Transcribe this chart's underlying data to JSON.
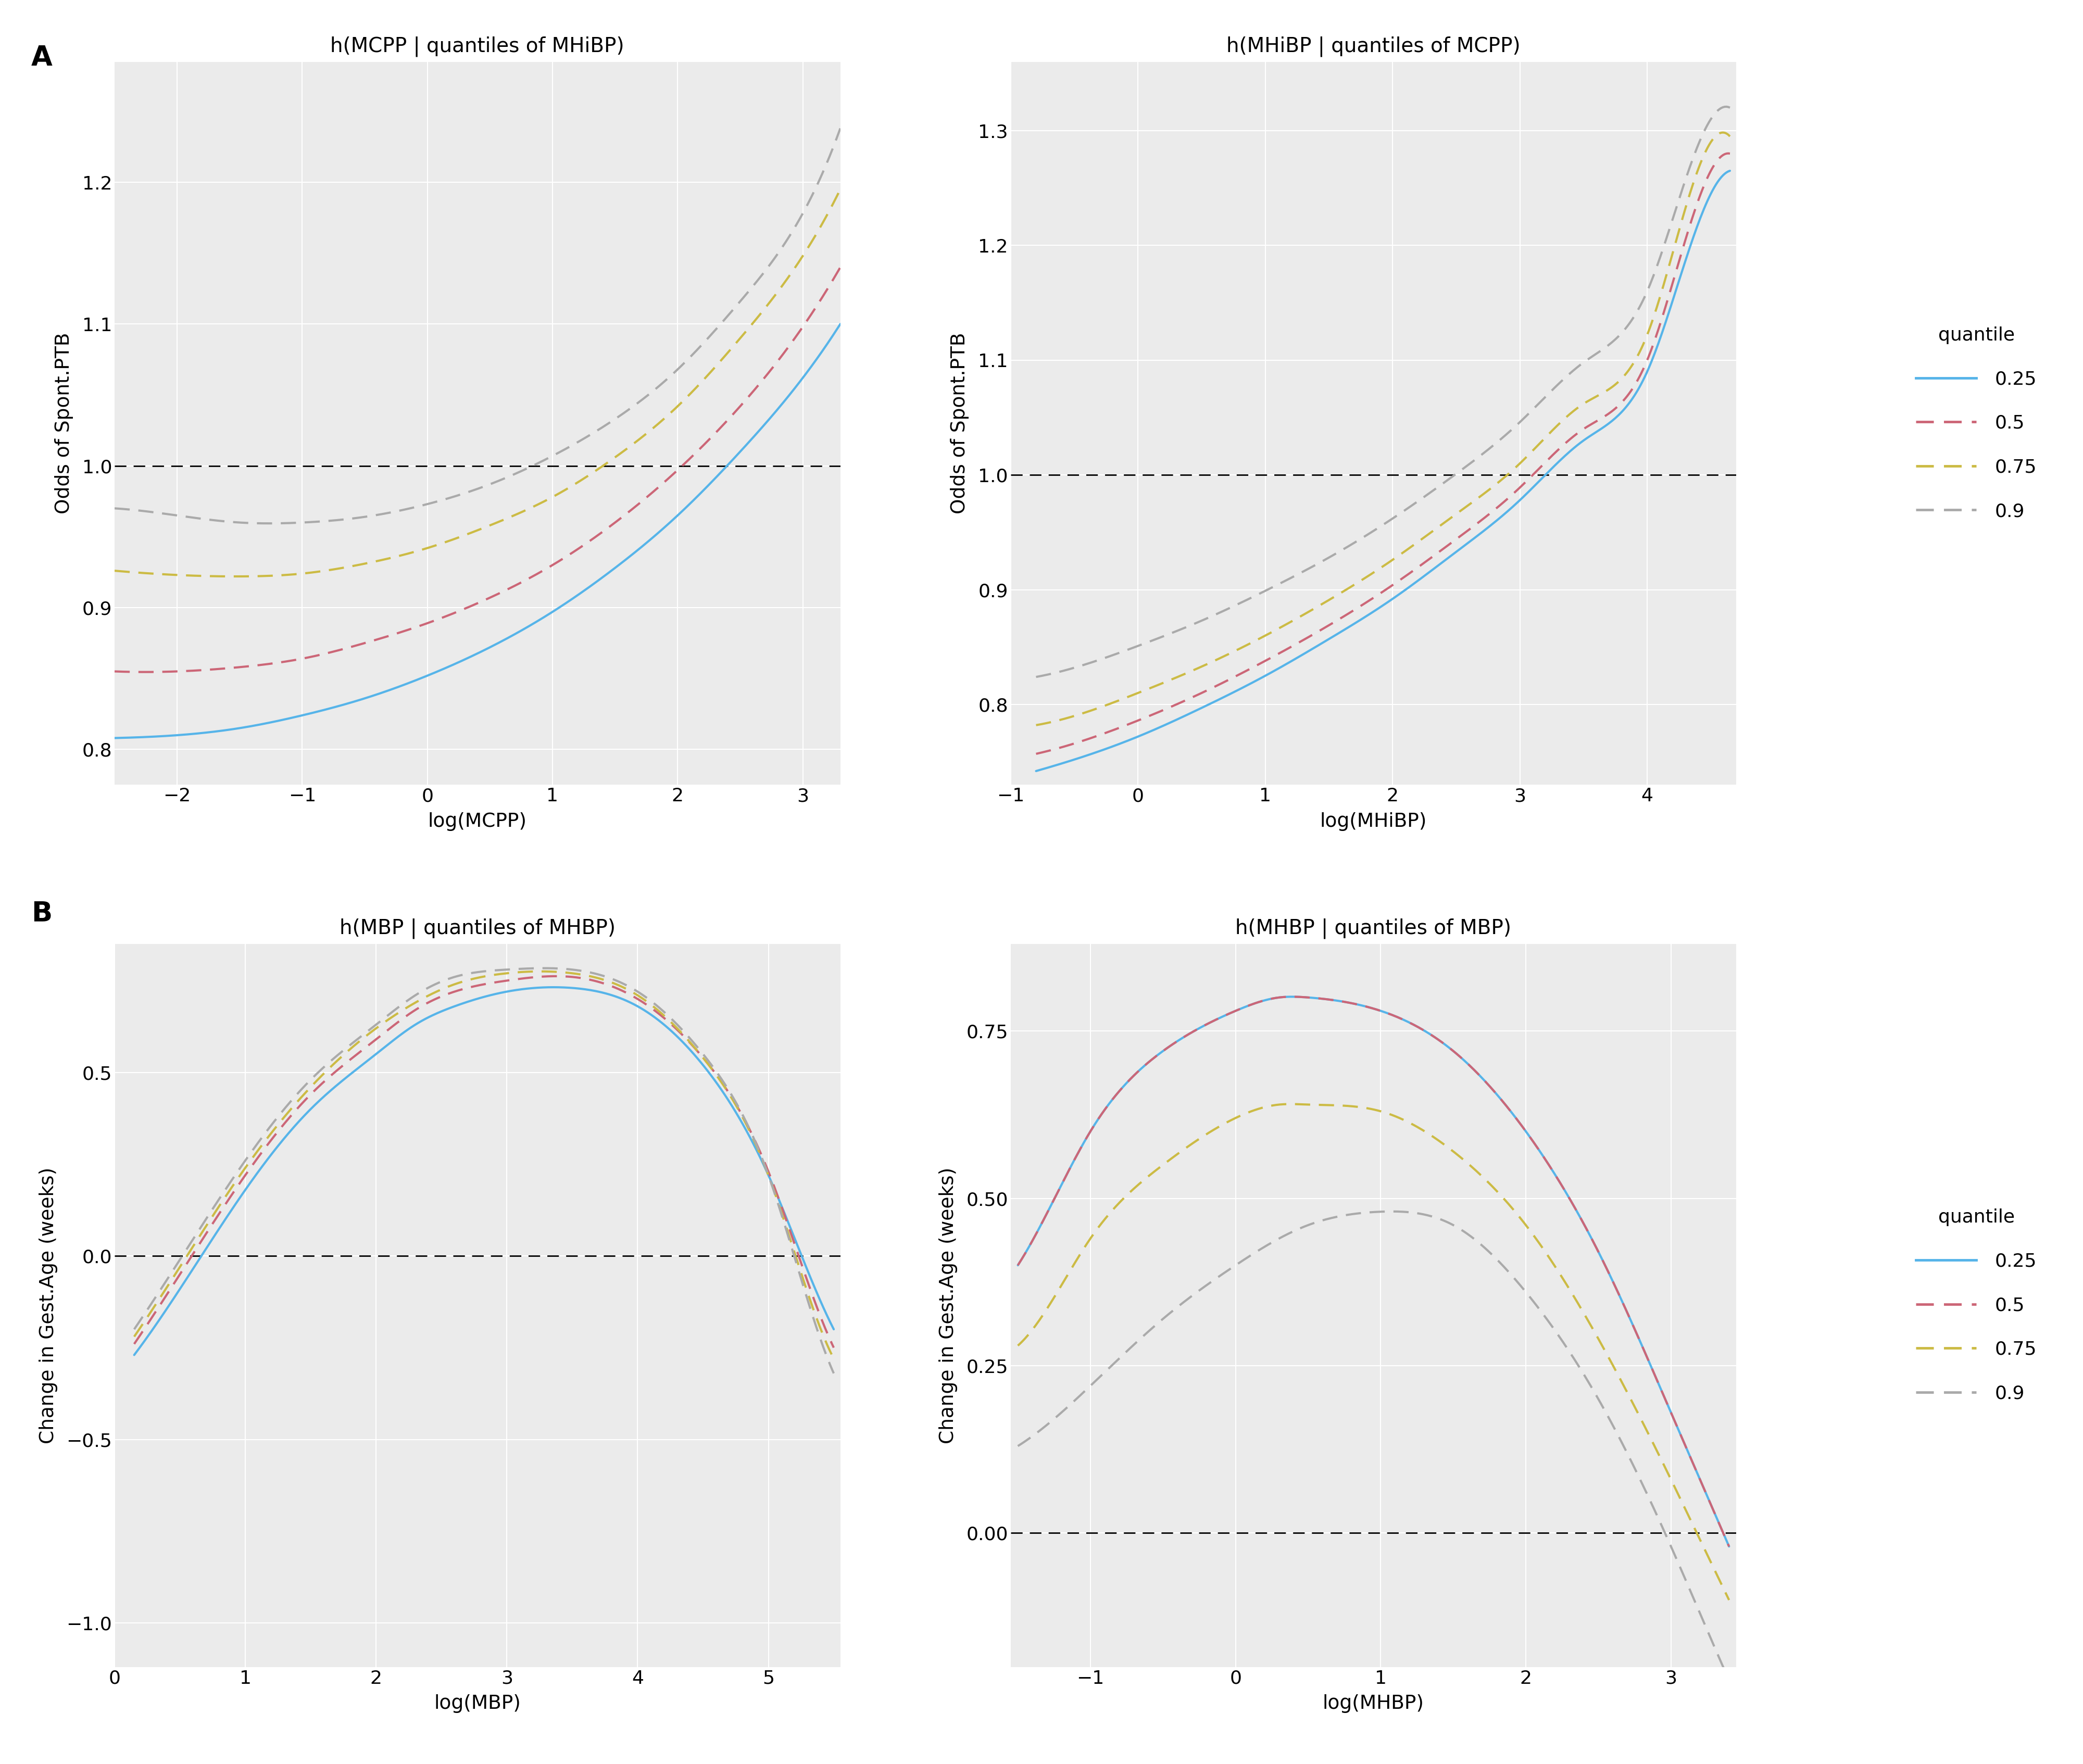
{
  "panel_A_left": {
    "title": "h(MCPP | quantiles of MHiBP)",
    "xlabel": "log(MCPP)",
    "ylabel": "Odds of Spont.PTB",
    "xlim": [
      -2.5,
      3.3
    ],
    "ylim": [
      0.775,
      1.285
    ],
    "xticks": [
      -2,
      -1,
      0,
      1,
      2,
      3
    ],
    "yticks": [
      0.8,
      0.9,
      1.0,
      1.1,
      1.2
    ],
    "hline": 1.0,
    "curves": {
      "q025": {
        "color": "#56B4E9",
        "linestyle": "solid",
        "lw": 3.0,
        "x": [
          -2.5,
          -2.0,
          -1.5,
          -1.0,
          -0.5,
          0.0,
          0.5,
          1.0,
          1.5,
          2.0,
          2.5,
          3.0,
          3.3
        ],
        "y": [
          0.808,
          0.81,
          0.815,
          0.824,
          0.836,
          0.852,
          0.872,
          0.897,
          0.928,
          0.965,
          1.01,
          1.062,
          1.1
        ]
      },
      "q050": {
        "color": "#CC6677",
        "linestyle": "dashed",
        "lw": 3.0,
        "x": [
          -2.5,
          -2.0,
          -1.5,
          -1.0,
          -0.5,
          0.0,
          0.5,
          1.0,
          1.5,
          2.0,
          2.5,
          3.0,
          3.3
        ],
        "y": [
          0.855,
          0.855,
          0.858,
          0.864,
          0.875,
          0.889,
          0.907,
          0.93,
          0.96,
          0.997,
          1.042,
          1.098,
          1.14
        ]
      },
      "q075": {
        "color": "#CCBB44",
        "linestyle": "dashed",
        "lw": 3.0,
        "x": [
          -2.5,
          -2.0,
          -1.5,
          -1.0,
          -0.5,
          0.0,
          0.5,
          1.0,
          1.5,
          2.0,
          2.5,
          3.0,
          3.3
        ],
        "y": [
          0.926,
          0.923,
          0.922,
          0.924,
          0.931,
          0.942,
          0.958,
          0.978,
          1.006,
          1.042,
          1.09,
          1.148,
          1.195
        ]
      },
      "q090": {
        "color": "#AAAAAA",
        "linestyle": "dashed",
        "lw": 3.0,
        "x": [
          -2.5,
          -2.0,
          -1.5,
          -1.0,
          -0.5,
          0.0,
          0.5,
          1.0,
          1.5,
          2.0,
          2.5,
          3.0,
          3.3
        ],
        "y": [
          0.97,
          0.965,
          0.96,
          0.96,
          0.964,
          0.973,
          0.987,
          1.007,
          1.033,
          1.068,
          1.116,
          1.178,
          1.238
        ]
      }
    }
  },
  "panel_A_right": {
    "title": "h(MHiBP | quantiles of MCPP)",
    "xlabel": "log(MHiBP)",
    "ylabel": "Odds of Spont.PTB",
    "xlim": [
      -0.85,
      4.7
    ],
    "ylim": [
      0.73,
      1.36
    ],
    "xticks": [
      -1,
      0,
      1,
      2,
      3,
      4
    ],
    "yticks": [
      0.8,
      0.9,
      1.0,
      1.1,
      1.2,
      1.3
    ],
    "hline": 1.0,
    "curves": {
      "q025": {
        "color": "#56B4E9",
        "linestyle": "solid",
        "lw": 3.0,
        "x": [
          -0.8,
          -0.5,
          0.0,
          0.5,
          1.0,
          1.5,
          2.0,
          2.5,
          3.0,
          3.5,
          4.0,
          4.5,
          4.65
        ],
        "y": [
          0.742,
          0.752,
          0.772,
          0.797,
          0.825,
          0.857,
          0.892,
          0.933,
          0.978,
          1.03,
          1.09,
          1.245,
          1.265
        ]
      },
      "q050": {
        "color": "#CC6677",
        "linestyle": "dashed",
        "lw": 3.0,
        "x": [
          -0.8,
          -0.5,
          0.0,
          0.5,
          1.0,
          1.5,
          2.0,
          2.5,
          3.0,
          3.5,
          4.0,
          4.5,
          4.65
        ],
        "y": [
          0.757,
          0.766,
          0.786,
          0.81,
          0.838,
          0.869,
          0.904,
          0.944,
          0.989,
          1.04,
          1.1,
          1.265,
          1.28
        ]
      },
      "q075": {
        "color": "#CCBB44",
        "linestyle": "dashed",
        "lw": 3.0,
        "x": [
          -0.8,
          -0.5,
          0.0,
          0.5,
          1.0,
          1.5,
          2.0,
          2.5,
          3.0,
          3.5,
          4.0,
          4.5,
          4.65
        ],
        "y": [
          0.782,
          0.79,
          0.81,
          0.833,
          0.86,
          0.891,
          0.926,
          0.966,
          1.01,
          1.062,
          1.122,
          1.29,
          1.295
        ]
      },
      "q090": {
        "color": "#AAAAAA",
        "linestyle": "dashed",
        "lw": 3.0,
        "x": [
          -0.8,
          -0.5,
          0.0,
          0.5,
          1.0,
          1.5,
          2.0,
          2.5,
          3.0,
          3.5,
          4.0,
          4.5,
          4.65
        ],
        "y": [
          0.824,
          0.832,
          0.851,
          0.873,
          0.899,
          0.928,
          0.962,
          1.001,
          1.046,
          1.098,
          1.16,
          1.31,
          1.32
        ]
      }
    }
  },
  "panel_B_left": {
    "title": "h(MBP | quantiles of MHBP)",
    "xlabel": "log(MBP)",
    "ylabel": "Change in Gest.Age (weeks)",
    "xlim": [
      0.0,
      5.55
    ],
    "ylim": [
      -1.12,
      0.85
    ],
    "xticks": [
      0,
      1,
      2,
      3,
      4,
      5
    ],
    "yticks": [
      -1.0,
      -0.5,
      0.0,
      0.5
    ],
    "hline": 0.0,
    "curves": {
      "q025": {
        "color": "#56B4E9",
        "linestyle": "solid",
        "lw": 3.0,
        "x": [
          0.15,
          0.5,
          1.0,
          1.5,
          2.0,
          2.3,
          2.6,
          3.0,
          3.5,
          4.0,
          4.5,
          5.0,
          5.3,
          5.5
        ],
        "y": [
          -0.27,
          -0.09,
          0.18,
          0.4,
          0.55,
          0.63,
          0.68,
          0.72,
          0.73,
          0.68,
          0.52,
          0.22,
          -0.04,
          -0.2
        ]
      },
      "q050": {
        "color": "#CC6677",
        "linestyle": "dashed",
        "lw": 3.0,
        "x": [
          0.15,
          0.5,
          1.0,
          1.5,
          2.0,
          2.3,
          2.6,
          3.0,
          3.5,
          4.0,
          4.5,
          5.0,
          5.3,
          5.5
        ],
        "y": [
          -0.24,
          -0.05,
          0.22,
          0.44,
          0.59,
          0.67,
          0.72,
          0.75,
          0.76,
          0.7,
          0.54,
          0.23,
          -0.07,
          -0.25
        ]
      },
      "q075": {
        "color": "#CCBB44",
        "linestyle": "dashed",
        "lw": 3.0,
        "x": [
          0.15,
          0.5,
          1.0,
          1.5,
          2.0,
          2.3,
          2.6,
          3.0,
          3.5,
          4.0,
          4.5,
          5.0,
          5.3,
          5.5
        ],
        "y": [
          -0.22,
          -0.03,
          0.24,
          0.46,
          0.62,
          0.69,
          0.74,
          0.77,
          0.77,
          0.71,
          0.54,
          0.22,
          -0.1,
          -0.28
        ]
      },
      "q090": {
        "color": "#AAAAAA",
        "linestyle": "dashed",
        "lw": 3.0,
        "x": [
          0.15,
          0.5,
          1.0,
          1.5,
          2.0,
          2.3,
          2.6,
          3.0,
          3.5,
          4.0,
          4.5,
          5.0,
          5.3,
          5.5
        ],
        "y": [
          -0.2,
          -0.01,
          0.26,
          0.48,
          0.63,
          0.71,
          0.76,
          0.78,
          0.78,
          0.72,
          0.55,
          0.22,
          -0.12,
          -0.32
        ]
      }
    }
  },
  "panel_B_right": {
    "title": "h(MHBP | quantiles of MBP)",
    "xlabel": "log(MHBP)",
    "ylabel": "Change in Gest.Age (weeks)",
    "xlim": [
      -1.55,
      3.45
    ],
    "ylim": [
      -0.2,
      0.88
    ],
    "xticks": [
      -1,
      0,
      1,
      2,
      3
    ],
    "yticks": [
      0.0,
      0.25,
      0.5,
      0.75
    ],
    "hline": 0.0,
    "curves": {
      "q025": {
        "color": "#56B4E9",
        "linestyle": "solid",
        "lw": 3.0,
        "x": [
          -1.5,
          -1.2,
          -1.0,
          -0.5,
          0.0,
          0.3,
          0.5,
          1.0,
          1.5,
          2.0,
          2.5,
          3.0,
          3.2,
          3.4
        ],
        "y": [
          0.4,
          0.52,
          0.6,
          0.72,
          0.78,
          0.8,
          0.8,
          0.78,
          0.72,
          0.6,
          0.42,
          0.18,
          0.08,
          -0.02
        ]
      },
      "q050": {
        "color": "#CC6677",
        "linestyle": "dashed",
        "lw": 3.0,
        "x": [
          -1.5,
          -1.2,
          -1.0,
          -0.5,
          0.0,
          0.3,
          0.5,
          1.0,
          1.5,
          2.0,
          2.5,
          3.0,
          3.2,
          3.4
        ],
        "y": [
          0.4,
          0.52,
          0.6,
          0.72,
          0.78,
          0.8,
          0.8,
          0.78,
          0.72,
          0.6,
          0.42,
          0.18,
          0.08,
          -0.02
        ]
      },
      "q075": {
        "color": "#CCBB44",
        "linestyle": "dashed",
        "lw": 3.0,
        "x": [
          -1.5,
          -1.2,
          -1.0,
          -0.5,
          0.0,
          0.3,
          0.5,
          1.0,
          1.5,
          2.0,
          2.5,
          3.0,
          3.2,
          3.4
        ],
        "y": [
          0.28,
          0.37,
          0.44,
          0.55,
          0.62,
          0.64,
          0.64,
          0.63,
          0.57,
          0.46,
          0.29,
          0.08,
          -0.01,
          -0.1
        ]
      },
      "q090": {
        "color": "#AAAAAA",
        "linestyle": "dashed",
        "lw": 3.0,
        "x": [
          -1.5,
          -1.2,
          -1.0,
          -0.5,
          0.0,
          0.3,
          0.5,
          1.0,
          1.5,
          2.0,
          2.5,
          3.0,
          3.2,
          3.4
        ],
        "y": [
          0.13,
          0.18,
          0.22,
          0.32,
          0.4,
          0.44,
          0.46,
          0.48,
          0.46,
          0.36,
          0.2,
          -0.02,
          -0.12,
          -0.22
        ]
      }
    }
  },
  "legend_labels": [
    "0.25",
    "0.5",
    "0.75",
    "0.9"
  ],
  "legend_colors": [
    "#56B4E9",
    "#CC6677",
    "#CCBB44",
    "#AAAAAA"
  ],
  "legend_styles": [
    "solid",
    "dashed",
    "dashed",
    "dashed"
  ],
  "bg_color": "#EBEBEB",
  "grid_color": "white",
  "fig_bg": "white",
  "label_A": "A",
  "label_B": "B"
}
